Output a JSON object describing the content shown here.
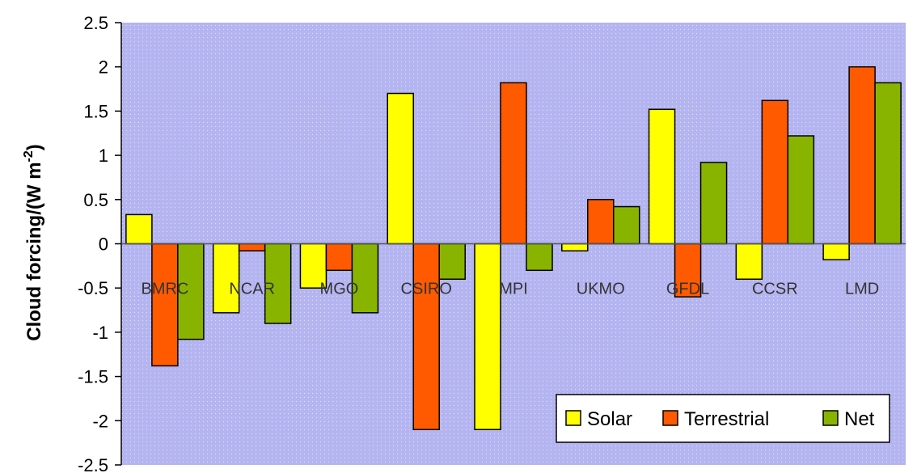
{
  "chart_data": {
    "type": "bar",
    "categories": [
      "BMRC",
      "NCAR",
      "MGO",
      "CSIRO",
      "MPI",
      "UKMO",
      "GFDL",
      "CCSR",
      "LMD"
    ],
    "series": [
      {
        "name": "Solar",
        "color": "#ffff00",
        "values": [
          0.33,
          -0.78,
          -0.5,
          1.7,
          -2.1,
          -0.08,
          1.52,
          -0.4,
          -0.18
        ]
      },
      {
        "name": "Terrestrial",
        "color": "#ff5a00",
        "values": [
          -1.38,
          -0.08,
          -0.3,
          -2.1,
          1.82,
          0.5,
          -0.6,
          1.62,
          2.0
        ]
      },
      {
        "name": "Net",
        "color": "#88b400",
        "values": [
          -1.08,
          -0.9,
          -0.78,
          -0.4,
          -0.3,
          0.42,
          0.92,
          1.22,
          1.82
        ]
      }
    ],
    "ylabel_main": "Cloud forcing/(W m",
    "ylabel_sup": "-2",
    "ylabel_close": ")",
    "ylim": [
      -2.5,
      2.5
    ],
    "yticks": [
      "2.5",
      "2",
      "1.5",
      "1",
      "0.5",
      "0",
      "-0.5",
      "-1",
      "-1.5",
      "-2",
      "-2.5"
    ],
    "legend_position": "bottom-right",
    "plot_background": "#b4b4f0",
    "grid": false
  }
}
